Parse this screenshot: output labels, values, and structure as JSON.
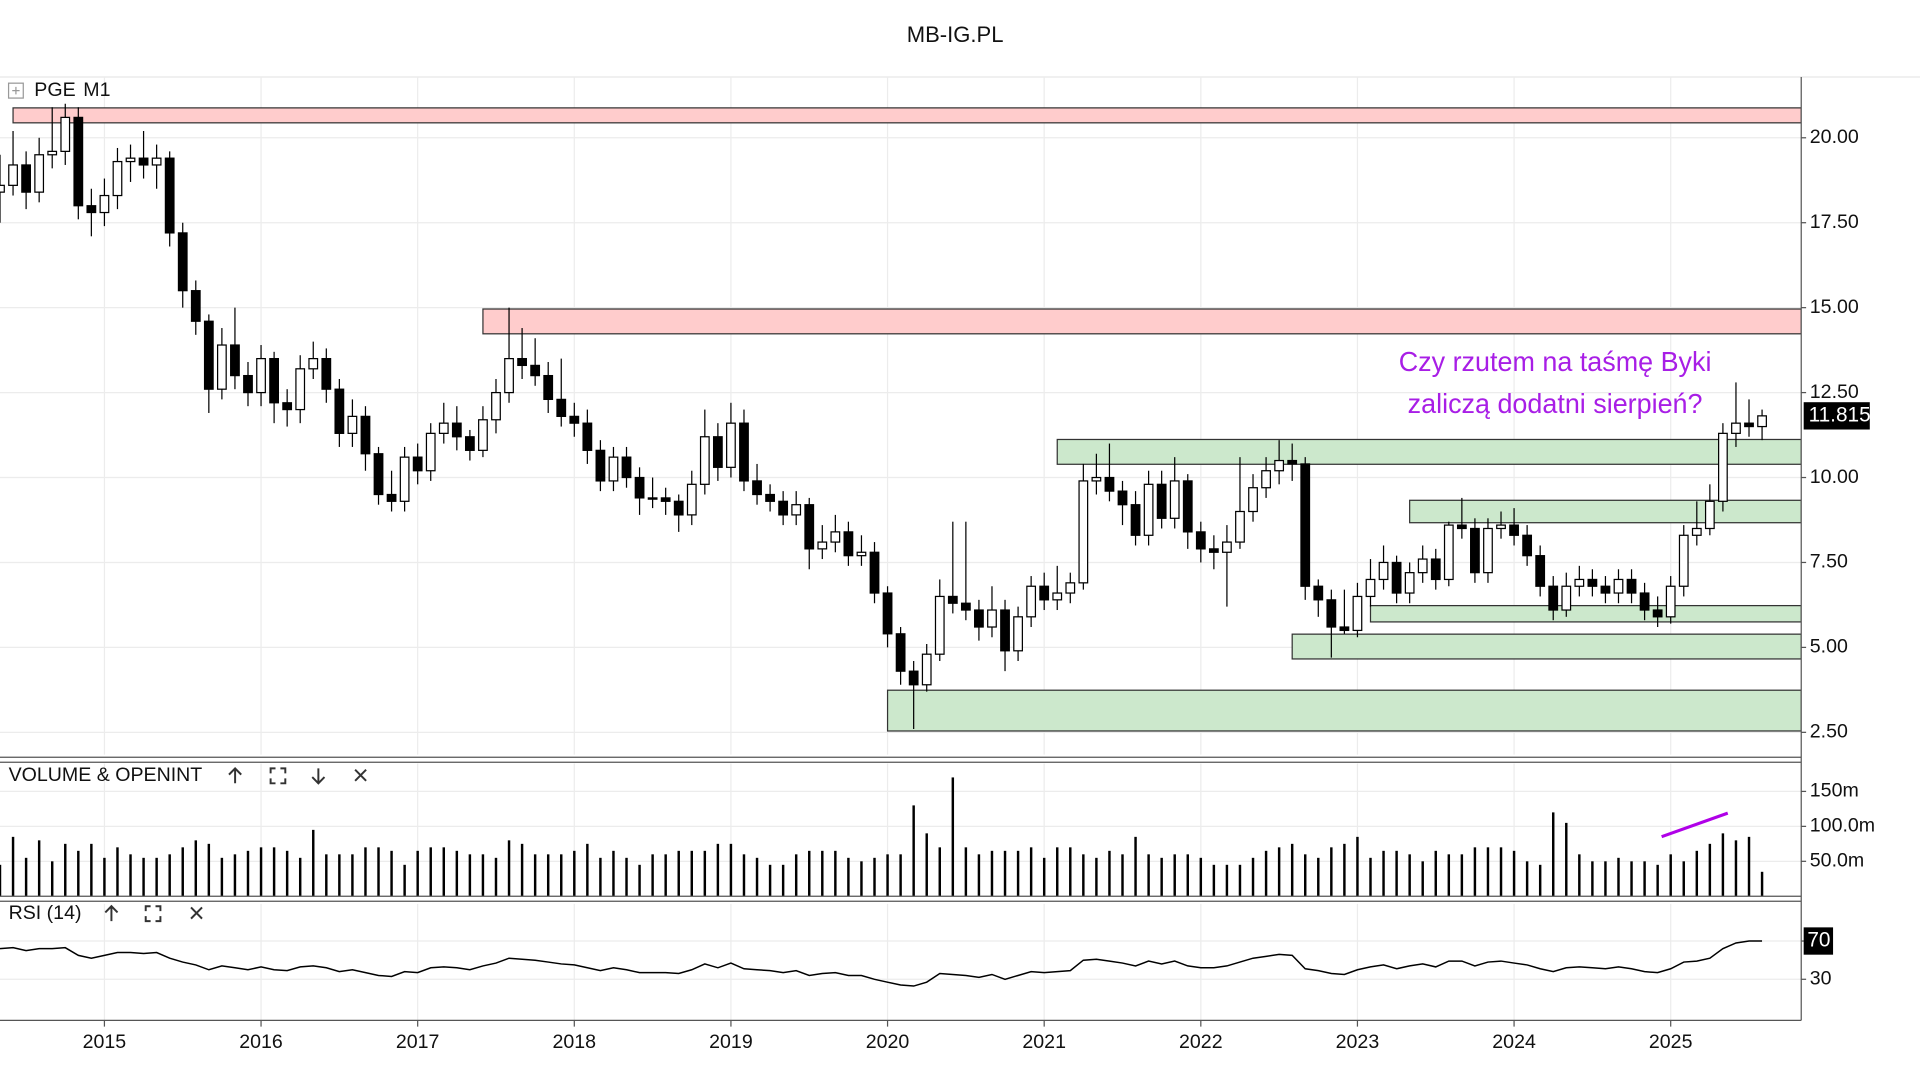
{
  "header": "MB-IG.PL",
  "chart_data": [
    {
      "type": "candlestick",
      "title": "PGE",
      "timeframe": "M1",
      "up_color": "#ffffff",
      "down_color": "#000000",
      "ohlc": [
        [
          18.4,
          19.5,
          17.5,
          18.6
        ],
        [
          18.6,
          20.2,
          18.3,
          19.2
        ],
        [
          19.2,
          19.6,
          17.9,
          18.4
        ],
        [
          18.4,
          20.0,
          18.1,
          19.5
        ],
        [
          19.5,
          20.9,
          19.1,
          19.6
        ],
        [
          19.6,
          21.0,
          19.2,
          20.6
        ],
        [
          20.6,
          20.9,
          17.6,
          18.0
        ],
        [
          18.0,
          18.5,
          17.1,
          17.8
        ],
        [
          17.8,
          18.8,
          17.4,
          18.3
        ],
        [
          18.3,
          19.7,
          17.9,
          19.3
        ],
        [
          19.3,
          19.8,
          18.7,
          19.4
        ],
        [
          19.4,
          20.2,
          18.8,
          19.2
        ],
        [
          19.2,
          19.8,
          18.5,
          19.4
        ],
        [
          19.4,
          19.6,
          16.8,
          17.2
        ],
        [
          17.2,
          17.5,
          15.0,
          15.5
        ],
        [
          15.5,
          15.8,
          14.2,
          14.6
        ],
        [
          14.6,
          14.8,
          11.9,
          12.6
        ],
        [
          12.6,
          14.4,
          12.3,
          13.9
        ],
        [
          13.9,
          15.0,
          12.6,
          13.0
        ],
        [
          13.0,
          13.4,
          12.1,
          12.5
        ],
        [
          12.5,
          13.9,
          12.1,
          13.5
        ],
        [
          13.5,
          13.7,
          11.6,
          12.2
        ],
        [
          12.2,
          12.6,
          11.5,
          12.0
        ],
        [
          12.0,
          13.6,
          11.6,
          13.2
        ],
        [
          13.2,
          14.0,
          12.9,
          13.5
        ],
        [
          13.5,
          13.8,
          12.2,
          12.6
        ],
        [
          12.6,
          12.9,
          10.9,
          11.3
        ],
        [
          11.3,
          12.3,
          10.9,
          11.8
        ],
        [
          11.8,
          12.1,
          10.2,
          10.7
        ],
        [
          10.7,
          10.9,
          9.2,
          9.5
        ],
        [
          9.5,
          10.2,
          9.0,
          9.3
        ],
        [
          9.3,
          10.9,
          9.0,
          10.6
        ],
        [
          10.6,
          11.0,
          9.8,
          10.2
        ],
        [
          10.2,
          11.6,
          9.9,
          11.3
        ],
        [
          11.3,
          12.2,
          11.0,
          11.6
        ],
        [
          11.6,
          12.1,
          10.8,
          11.2
        ],
        [
          11.2,
          11.4,
          10.5,
          10.8
        ],
        [
          10.8,
          12.1,
          10.6,
          11.7
        ],
        [
          11.7,
          12.9,
          11.3,
          12.5
        ],
        [
          12.5,
          15.0,
          12.2,
          13.5
        ],
        [
          13.5,
          14.4,
          12.9,
          13.3
        ],
        [
          13.3,
          14.1,
          12.7,
          13.0
        ],
        [
          13.0,
          13.4,
          11.9,
          12.3
        ],
        [
          12.3,
          13.5,
          11.5,
          11.8
        ],
        [
          11.8,
          12.2,
          11.2,
          11.6
        ],
        [
          11.6,
          12.0,
          10.4,
          10.8
        ],
        [
          10.8,
          11.1,
          9.6,
          9.9
        ],
        [
          9.9,
          10.9,
          9.6,
          10.6
        ],
        [
          10.6,
          10.9,
          9.7,
          10.0
        ],
        [
          10.0,
          10.3,
          8.9,
          9.4
        ],
        [
          9.4,
          10.0,
          9.1,
          9.4
        ],
        [
          9.4,
          9.7,
          8.9,
          9.3
        ],
        [
          9.3,
          9.5,
          8.4,
          8.9
        ],
        [
          8.9,
          10.2,
          8.6,
          9.8
        ],
        [
          9.8,
          12.0,
          9.5,
          11.2
        ],
        [
          11.2,
          11.6,
          9.9,
          10.3
        ],
        [
          10.3,
          12.2,
          10.0,
          11.6
        ],
        [
          11.6,
          12.0,
          9.6,
          9.9
        ],
        [
          9.9,
          10.4,
          9.2,
          9.5
        ],
        [
          9.5,
          9.8,
          9.0,
          9.3
        ],
        [
          9.3,
          9.6,
          8.6,
          8.9
        ],
        [
          8.9,
          9.6,
          8.6,
          9.2
        ],
        [
          9.2,
          9.4,
          7.3,
          7.9
        ],
        [
          7.9,
          8.6,
          7.6,
          8.1
        ],
        [
          8.1,
          8.9,
          7.8,
          8.4
        ],
        [
          8.4,
          8.7,
          7.4,
          7.7
        ],
        [
          7.7,
          8.3,
          7.4,
          7.8
        ],
        [
          7.8,
          8.1,
          6.3,
          6.6
        ],
        [
          6.6,
          6.8,
          5.0,
          5.4
        ],
        [
          5.4,
          5.6,
          3.9,
          4.3
        ],
        [
          4.3,
          4.6,
          2.6,
          3.9
        ],
        [
          3.9,
          5.1,
          3.7,
          4.8
        ],
        [
          4.8,
          7.0,
          4.6,
          6.5
        ],
        [
          6.5,
          8.7,
          6.0,
          6.3
        ],
        [
          6.3,
          8.7,
          5.8,
          6.1
        ],
        [
          6.1,
          6.4,
          5.2,
          5.6
        ],
        [
          5.6,
          6.8,
          5.3,
          6.1
        ],
        [
          6.1,
          6.4,
          4.3,
          4.9
        ],
        [
          4.9,
          6.2,
          4.6,
          5.9
        ],
        [
          5.9,
          7.1,
          5.6,
          6.8
        ],
        [
          6.8,
          7.2,
          6.1,
          6.4
        ],
        [
          6.4,
          7.4,
          6.1,
          6.6
        ],
        [
          6.6,
          7.2,
          6.3,
          6.9
        ],
        [
          6.9,
          10.4,
          6.7,
          9.9
        ],
        [
          9.9,
          10.7,
          9.5,
          10.0
        ],
        [
          10.0,
          11.0,
          9.3,
          9.6
        ],
        [
          9.6,
          9.9,
          8.6,
          9.2
        ],
        [
          9.2,
          9.6,
          8.0,
          8.3
        ],
        [
          8.3,
          10.2,
          8.0,
          9.8
        ],
        [
          9.8,
          10.2,
          8.5,
          8.8
        ],
        [
          8.8,
          10.6,
          8.5,
          9.9
        ],
        [
          9.9,
          10.1,
          7.9,
          8.4
        ],
        [
          8.4,
          8.7,
          7.5,
          7.9
        ],
        [
          7.9,
          8.3,
          7.3,
          7.8
        ],
        [
          7.8,
          8.6,
          6.2,
          8.1
        ],
        [
          8.1,
          10.6,
          7.9,
          9.0
        ],
        [
          9.0,
          10.1,
          8.7,
          9.7
        ],
        [
          9.7,
          10.6,
          9.4,
          10.2
        ],
        [
          10.2,
          11.1,
          9.8,
          10.5
        ],
        [
          10.5,
          11.0,
          9.9,
          10.4
        ],
        [
          10.4,
          10.6,
          6.4,
          6.8
        ],
        [
          6.8,
          7.0,
          5.9,
          6.4
        ],
        [
          6.4,
          6.7,
          4.7,
          5.6
        ],
        [
          5.6,
          6.7,
          5.4,
          5.5
        ],
        [
          5.5,
          6.9,
          5.3,
          6.5
        ],
        [
          6.5,
          7.6,
          6.2,
          7.0
        ],
        [
          7.0,
          8.0,
          6.7,
          7.5
        ],
        [
          7.5,
          7.7,
          6.3,
          6.6
        ],
        [
          6.6,
          7.5,
          6.3,
          7.2
        ],
        [
          7.2,
          8.0,
          6.9,
          7.6
        ],
        [
          7.6,
          7.9,
          6.7,
          7.0
        ],
        [
          7.0,
          8.7,
          6.8,
          8.6
        ],
        [
          8.6,
          9.4,
          8.2,
          8.5
        ],
        [
          8.5,
          8.8,
          6.9,
          7.2
        ],
        [
          7.2,
          8.8,
          6.9,
          8.5
        ],
        [
          8.5,
          9.0,
          8.2,
          8.6
        ],
        [
          8.6,
          9.1,
          8.0,
          8.3
        ],
        [
          8.3,
          8.6,
          7.4,
          7.7
        ],
        [
          7.7,
          8.0,
          6.5,
          6.8
        ],
        [
          6.8,
          7.1,
          5.8,
          6.1
        ],
        [
          6.1,
          7.2,
          5.9,
          6.8
        ],
        [
          6.8,
          7.4,
          6.5,
          7.0
        ],
        [
          7.0,
          7.3,
          6.5,
          6.8
        ],
        [
          6.8,
          7.1,
          6.3,
          6.6
        ],
        [
          6.6,
          7.3,
          6.3,
          7.0
        ],
        [
          7.0,
          7.3,
          6.3,
          6.6
        ],
        [
          6.6,
          6.9,
          5.8,
          6.1
        ],
        [
          6.1,
          6.5,
          5.6,
          5.9
        ],
        [
          5.9,
          7.1,
          5.7,
          6.8
        ],
        [
          6.8,
          8.6,
          6.5,
          8.3
        ],
        [
          8.3,
          9.3,
          8.0,
          8.5
        ],
        [
          8.5,
          9.8,
          8.3,
          9.3
        ],
        [
          9.3,
          11.6,
          9.0,
          11.3
        ],
        [
          11.3,
          12.8,
          10.9,
          11.6
        ],
        [
          11.6,
          12.3,
          11.2,
          11.5
        ],
        [
          11.5,
          12.0,
          11.1,
          11.815
        ]
      ],
      "xlim": [
        0,
        138
      ],
      "xticks": [
        {
          "value": 8,
          "label": "2015"
        },
        {
          "value": 20,
          "label": "2016"
        },
        {
          "value": 32,
          "label": "2017"
        },
        {
          "value": 44,
          "label": "2018"
        },
        {
          "value": 56,
          "label": "2019"
        },
        {
          "value": 68,
          "label": "2020"
        },
        {
          "value": 80,
          "label": "2021"
        },
        {
          "value": 92,
          "label": "2022"
        },
        {
          "value": 104,
          "label": "2023"
        },
        {
          "value": 116,
          "label": "2024"
        },
        {
          "value": 128,
          "label": "2025"
        }
      ],
      "ylim": [
        1.84,
        21.79
      ],
      "yticks": [
        {
          "value": 2.5,
          "label": "2.50"
        },
        {
          "value": 5,
          "label": "5.00"
        },
        {
          "value": 7.5,
          "label": "7.50"
        },
        {
          "value": 10,
          "label": "10.00"
        },
        {
          "value": 12.5,
          "label": "12.50"
        },
        {
          "value": 15,
          "label": "15.00"
        },
        {
          "value": 17.5,
          "label": "17.50"
        },
        {
          "value": 20,
          "label": "20.00"
        }
      ],
      "grid": true,
      "zones": [
        {
          "start": 1,
          "low": 20.44,
          "high": 20.88,
          "color": "#ffcccc"
        },
        {
          "start": 37,
          "low": 14.23,
          "high": 14.96,
          "color": "#ffcccc"
        },
        {
          "start": 81,
          "low": 10.39,
          "high": 11.12,
          "color": "#cce8cc"
        },
        {
          "start": 108,
          "low": 8.67,
          "high": 9.33,
          "color": "#cce8cc"
        },
        {
          "start": 105,
          "low": 5.75,
          "high": 6.23,
          "color": "#cce8cc"
        },
        {
          "start": 99,
          "low": 4.66,
          "high": 5.39,
          "color": "#cce8cc"
        },
        {
          "start": 68,
          "low": 2.54,
          "high": 3.74,
          "color": "#cce8cc"
        }
      ],
      "annotation": [
        "Czy rzutem na taśmę Byki",
        "zaliczą dodatni sierpień?"
      ],
      "annotation_color": "#a81ee6"
    },
    {
      "type": "bar",
      "title": "VOLUME & OPENINT",
      "color": "#000000",
      "values": [
        45000000.0,
        85000000.0,
        55000000.0,
        80000000.0,
        50000000.0,
        75000000.0,
        65000000.0,
        75000000.0,
        55000000.0,
        70000000.0,
        60000000.0,
        55000000.0,
        55000000.0,
        60000000.0,
        70000000.0,
        80000000.0,
        75000000.0,
        55000000.0,
        60000000.0,
        65000000.0,
        70000000.0,
        70000000.0,
        65000000.0,
        55000000.0,
        95000000.0,
        60000000.0,
        60000000.0,
        60000000.0,
        70000000.0,
        70000000.0,
        65000000.0,
        45000000.0,
        65000000.0,
        70000000.0,
        70000000.0,
        65000000.0,
        60000000.0,
        60000000.0,
        55000000.0,
        80000000.0,
        75000000.0,
        60000000.0,
        60000000.0,
        60000000.0,
        65000000.0,
        75000000.0,
        55000000.0,
        65000000.0,
        55000000.0,
        45000000.0,
        60000000.0,
        60000000.0,
        65000000.0,
        65000000.0,
        65000000.0,
        75000000.0,
        75000000.0,
        60000000.0,
        55000000.0,
        45000000.0,
        45000000.0,
        60000000.0,
        65000000.0,
        65000000.0,
        65000000.0,
        55000000.0,
        50000000.0,
        55000000.0,
        60000000.0,
        60000000.0,
        130000000.0,
        90000000.0,
        70000000.0,
        170000000.0,
        70000000.0,
        60000000.0,
        65000000.0,
        65000000.0,
        65000000.0,
        70000000.0,
        55000000.0,
        70000000.0,
        70000000.0,
        60000000.0,
        55000000.0,
        65000000.0,
        60000000.0,
        85000000.0,
        60000000.0,
        55000000.0,
        60000000.0,
        60000000.0,
        55000000.0,
        45000000.0,
        45000000.0,
        45000000.0,
        55000000.0,
        65000000.0,
        70000000.0,
        75000000.0,
        60000000.0,
        55000000.0,
        70000000.0,
        75000000.0,
        85000000.0,
        55000000.0,
        65000000.0,
        65000000.0,
        60000000.0,
        50000000.0,
        65000000.0,
        60000000.0,
        60000000.0,
        70000000.0,
        70000000.0,
        70000000.0,
        65000000.0,
        50000000.0,
        45000000.0,
        120000000.0,
        105000000.0,
        60000000.0,
        50000000.0,
        50000000.0,
        55000000.0,
        50000000.0,
        50000000.0,
        45000000.0,
        60000000.0,
        50000000.0,
        65000000.0,
        75000000.0,
        90000000.0,
        80000000.0,
        85000000.0,
        35000000.0
      ],
      "xlim": [
        0,
        138
      ],
      "ylim": [
        0,
        190000000.0
      ],
      "yticks": [
        {
          "value": 50000000.0,
          "label": "50.0m"
        },
        {
          "value": 100000000.0,
          "label": "100.0m"
        },
        {
          "value": 150000000.0,
          "label": "150m"
        }
      ]
    },
    {
      "type": "line",
      "title": "RSI (14)",
      "color": "#000000",
      "values": [
        62,
        63,
        60,
        62,
        62,
        63,
        55,
        52,
        55,
        58,
        58,
        57,
        58,
        52,
        48,
        45,
        40,
        44,
        42,
        40,
        43,
        40,
        39,
        43,
        44,
        42,
        38,
        40,
        37,
        34,
        33,
        38,
        37,
        42,
        43,
        42,
        40,
        44,
        47,
        52,
        51,
        50,
        48,
        46,
        45,
        42,
        39,
        42,
        40,
        37,
        37,
        37,
        36,
        40,
        46,
        42,
        47,
        41,
        40,
        39,
        37,
        39,
        34,
        36,
        37,
        34,
        34,
        30,
        27,
        24,
        23,
        27,
        36,
        35,
        34,
        32,
        35,
        30,
        34,
        38,
        37,
        38,
        39,
        50,
        51,
        49,
        47,
        44,
        49,
        46,
        49,
        44,
        42,
        42,
        44,
        48,
        52,
        54,
        56,
        55,
        41,
        39,
        36,
        35,
        40,
        43,
        45,
        41,
        44,
        46,
        43,
        49,
        49,
        44,
        48,
        49,
        47,
        45,
        41,
        38,
        42,
        43,
        42,
        41,
        43,
        41,
        38,
        37,
        41,
        48,
        49,
        52,
        62,
        68,
        70,
        70
      ],
      "xlim": [
        0,
        138
      ],
      "ylim": [
        -13,
        109
      ],
      "yticks": [
        30,
        70
      ],
      "grid": true
    }
  ]
}
